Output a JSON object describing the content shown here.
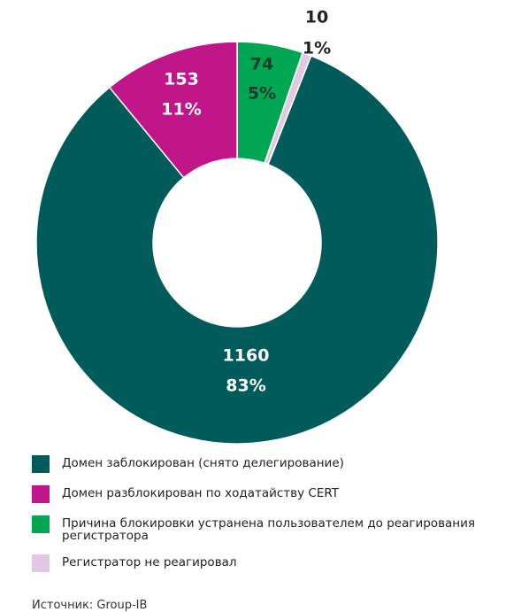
{
  "chart_data": {
    "type": "donut",
    "categories": [
      "Домен заблокирован (снято делегирование)",
      "Домен разблокирован по ходатайству CERT",
      "Причина блокировки устранена пользователем до реагирования регистратора",
      "Регистратор не реагировал"
    ],
    "values": [
      1160,
      153,
      74,
      10
    ],
    "shares": [
      83,
      11,
      5,
      1
    ],
    "share_labels": [
      "83%",
      "11%",
      "5%",
      "1%"
    ],
    "colors": [
      "#005b5a",
      "#c1168a",
      "#00a651",
      "#e2c9e2"
    ],
    "source": "Источник: Group-IB"
  }
}
